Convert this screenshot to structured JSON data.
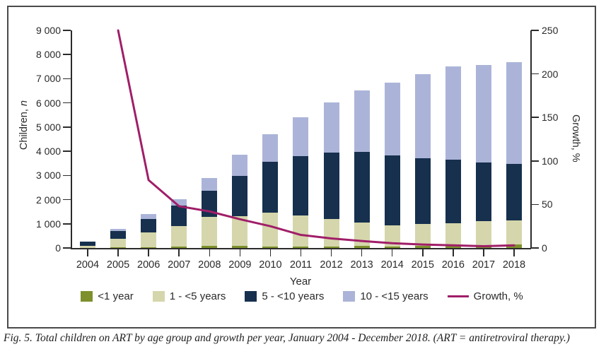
{
  "figure": {
    "caption": "Fig. 5. Total children on ART by age group and growth per year, January 2004 - December 2018. (ART = antiretroviral therapy.)"
  },
  "axes": {
    "xlabel": "Year",
    "ylabel_left_prefix": "Children, ",
    "ylabel_left_italic": "n",
    "ylabel_right": "Growth, %"
  },
  "chart_data": {
    "type": "bar",
    "subtype": "stacked-bars-with-line-overlay",
    "title": "",
    "xlabel": "Year",
    "ylabel_left": "Children, n",
    "ylabel_right": "Growth, %",
    "grid": false,
    "legend_position": "bottom",
    "categories": [
      "2004",
      "2005",
      "2006",
      "2007",
      "2008",
      "2009",
      "2010",
      "2011",
      "2012",
      "2013",
      "2014",
      "2015",
      "2016",
      "2017",
      "2018"
    ],
    "ylim_left": [
      0,
      9000
    ],
    "ylim_right": [
      0,
      250
    ],
    "yticks_left_labels": [
      "0",
      "1 000",
      "2 000",
      "3 000",
      "4 000",
      "5 000",
      "6 000",
      "7 000",
      "8 000",
      "9 000"
    ],
    "yticks_right_labels": [
      "0",
      "50",
      "100",
      "150",
      "200",
      "250"
    ],
    "yticks_right_values": [
      0,
      50,
      100,
      150,
      200,
      250
    ],
    "series": [
      {
        "name": "<1 year",
        "color": "#7d902c",
        "values": [
          0,
          30,
          30,
          60,
          100,
          80,
          70,
          70,
          50,
          90,
          60,
          80,
          80,
          60,
          150
        ]
      },
      {
        "name": "1 - <5 years",
        "color": "#d5d6ab",
        "values": [
          80,
          350,
          620,
          850,
          1200,
          1240,
          1380,
          1280,
          1150,
          960,
          870,
          900,
          950,
          1040,
          1000
        ]
      },
      {
        "name": "5 - <10 years",
        "color": "#16304e",
        "values": [
          170,
          330,
          560,
          830,
          1080,
          1650,
          2110,
          2450,
          2750,
          2930,
          2910,
          2720,
          2620,
          2430,
          2320
        ]
      },
      {
        "name": "10 - <15 years",
        "color": "#abb4d8",
        "values": [
          0,
          90,
          180,
          290,
          520,
          880,
          1150,
          1600,
          2080,
          2550,
          3010,
          3480,
          3850,
          4030,
          4210
        ]
      }
    ],
    "totals": [
      250,
      800,
      1390,
      2030,
      2900,
      3850,
      4710,
      5400,
      6030,
      6530,
      6850,
      7180,
      7500,
      7560,
      7680
    ],
    "line_series": {
      "name": "Growth, %",
      "axis": "right",
      "color": "#a01e68",
      "values": [
        null,
        250,
        78,
        48,
        42,
        33,
        25,
        15,
        11,
        8,
        5.5,
        4,
        3,
        2,
        3
      ]
    }
  }
}
